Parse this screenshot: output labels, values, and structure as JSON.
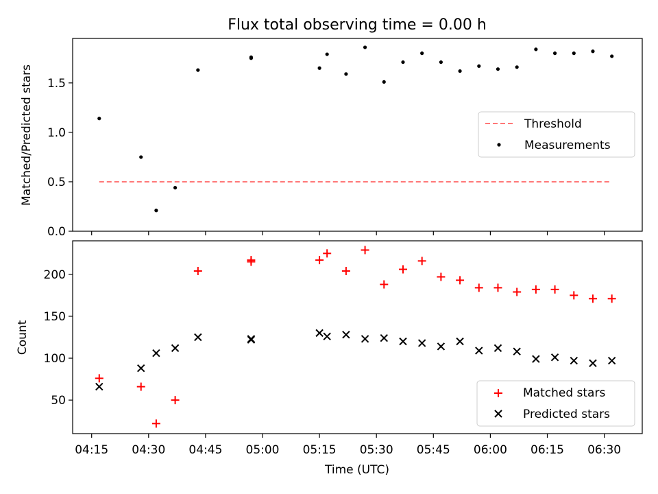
{
  "figure": {
    "title": "Flux total observing time = 0.00 h",
    "xlabel": "Time (UTC)"
  },
  "chart_data": [
    {
      "type": "scatter",
      "ylabel": "Matched/Predicted stars",
      "xlim": [
        "04:10",
        "06:40"
      ],
      "ylim": [
        0,
        1.95
      ],
      "yticks": [
        "0.0",
        "0.5",
        "1.0",
        "1.5"
      ],
      "legend_position": "center-right",
      "threshold": {
        "name": "Threshold",
        "value": 0.5,
        "x_start": "04:17",
        "x_end": "06:32",
        "color": "#ff7777",
        "style": "dashed"
      },
      "series": [
        {
          "name": "Measurements",
          "color": "#000000",
          "marker": "dot",
          "x": [
            "04:17",
            "04:28",
            "04:32",
            "04:37",
            "04:43",
            "04:57",
            "04:57",
            "05:15",
            "05:17",
            "05:22",
            "05:27",
            "05:32",
            "05:37",
            "05:42",
            "05:47",
            "05:52",
            "05:57",
            "06:02",
            "06:07",
            "06:12",
            "06:17",
            "06:22",
            "06:27",
            "06:32"
          ],
          "y": [
            1.14,
            0.75,
            0.21,
            0.44,
            1.63,
            1.76,
            1.75,
            1.65,
            1.79,
            1.59,
            1.86,
            1.51,
            1.71,
            1.8,
            1.71,
            1.62,
            1.67,
            1.64,
            1.66,
            1.84,
            1.8,
            1.8,
            1.82,
            1.77
          ]
        }
      ]
    },
    {
      "type": "scatter",
      "ylabel": "Count",
      "xlim": [
        "04:10",
        "06:40"
      ],
      "ylim": [
        10,
        240
      ],
      "yticks": [
        "50",
        "100",
        "150",
        "200"
      ],
      "xticks": [
        "04:15",
        "04:30",
        "04:45",
        "05:00",
        "05:15",
        "05:30",
        "05:45",
        "06:00",
        "06:15",
        "06:30"
      ],
      "legend_position": "lower-right",
      "series": [
        {
          "name": "Matched stars",
          "color": "#ff0000",
          "marker": "plus",
          "x": [
            "04:17",
            "04:28",
            "04:32",
            "04:37",
            "04:43",
            "04:57",
            "04:57",
            "05:15",
            "05:17",
            "05:22",
            "05:27",
            "05:32",
            "05:37",
            "05:42",
            "05:47",
            "05:52",
            "05:57",
            "06:02",
            "06:07",
            "06:12",
            "06:17",
            "06:22",
            "06:27",
            "06:32"
          ],
          "y": [
            76,
            66,
            22,
            50,
            204,
            217,
            215,
            217,
            225,
            204,
            229,
            188,
            206,
            216,
            197,
            193,
            184,
            184,
            179,
            182,
            182,
            175,
            171,
            171
          ]
        },
        {
          "name": "Predicted stars",
          "color": "#000000",
          "marker": "x",
          "x": [
            "04:17",
            "04:28",
            "04:32",
            "04:37",
            "04:43",
            "04:57",
            "04:57",
            "05:15",
            "05:17",
            "05:22",
            "05:27",
            "05:32",
            "05:37",
            "05:42",
            "05:47",
            "05:52",
            "05:57",
            "06:02",
            "06:07",
            "06:12",
            "06:17",
            "06:22",
            "06:27",
            "06:32"
          ],
          "y": [
            66,
            88,
            106,
            112,
            125,
            123,
            122,
            130,
            126,
            128,
            123,
            124,
            120,
            118,
            114,
            120,
            109,
            112,
            108,
            99,
            101,
            97,
            94,
            97
          ]
        }
      ]
    }
  ]
}
